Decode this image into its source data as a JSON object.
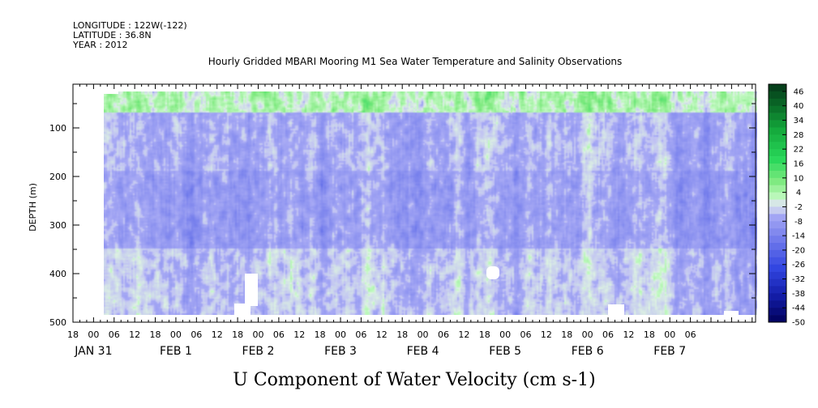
{
  "header": {
    "longitude": "LONGITUDE : 122W(-122)",
    "latitude": "LATITUDE : 36.8N",
    "year": "YEAR : 2012"
  },
  "chart_data": {
    "type": "heatmap",
    "title": "Hourly Gridded MBARI Mooring M1 Sea Water Temperature and Salinity Observations",
    "xlabel_title": "U Component of Water Velocity (cm s-1)",
    "ylabel": "DEPTH (m)",
    "y_axis": {
      "ticks": [
        100,
        200,
        300,
        400,
        500
      ],
      "range": [
        10,
        500
      ],
      "reversed": true,
      "unit": "m"
    },
    "x_axis": {
      "unit": "hours since 2012-01-30 18:00",
      "range": [
        0,
        199
      ],
      "hour_ticks": [
        "18",
        "00",
        "06",
        "12",
        "18",
        "00",
        "06",
        "12",
        "18",
        "00",
        "06",
        "12",
        "18",
        "00",
        "06",
        "12",
        "18",
        "00",
        "06",
        "12",
        "18",
        "00",
        "06",
        "12",
        "18",
        "00",
        "06",
        "12",
        "18",
        "00",
        "06"
      ],
      "day_labels": [
        "JAN 31",
        "FEB  1",
        "FEB  2",
        "FEB  3",
        "FEB  4",
        "FEB  5",
        "FEB  6",
        "FEB  7"
      ]
    },
    "colorbar": {
      "levels": [
        46,
        40,
        34,
        28,
        22,
        16,
        10,
        4,
        -2,
        -8,
        -14,
        -20,
        -26,
        -32,
        -38,
        -44,
        -50
      ],
      "range": [
        -50,
        46
      ],
      "step": 3
    },
    "field_description_values": {
      "dominant_range": [
        -14,
        10
      ],
      "surface_layer_sign": "positive",
      "mid_depth_sign": "negative"
    }
  }
}
